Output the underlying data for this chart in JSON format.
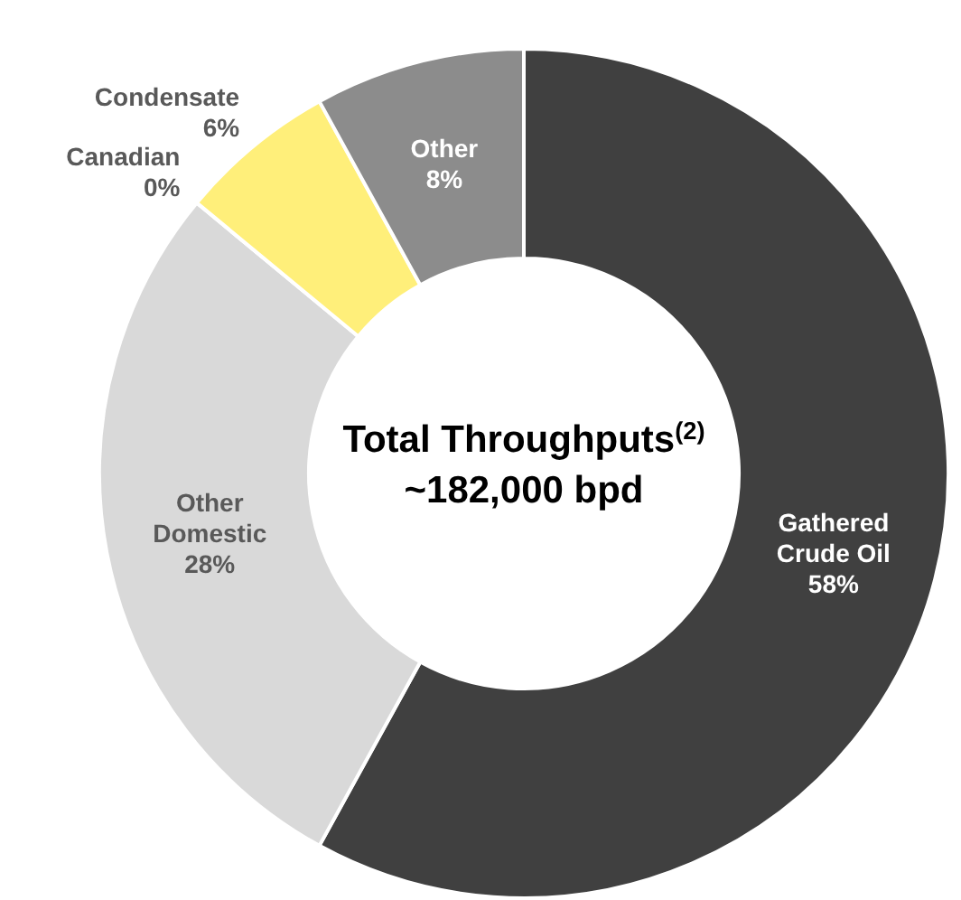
{
  "chart_data": {
    "type": "donut",
    "categories": [
      "Gathered Crude Oil",
      "Other Domestic",
      "Canadian",
      "Condensate",
      "Other"
    ],
    "values": [
      58,
      28,
      0,
      6,
      8
    ],
    "colors": [
      "#404040",
      "#d9d9d9",
      "#bfbfbf",
      "#ffef7a",
      "#8c8c8c"
    ],
    "value_labels": [
      "58%",
      "28%",
      "0%",
      "6%",
      "8%"
    ],
    "annotations": [
      "Total Throughputs$^{(2)}$",
      "~182,000 bpd"
    ]
  }
}
